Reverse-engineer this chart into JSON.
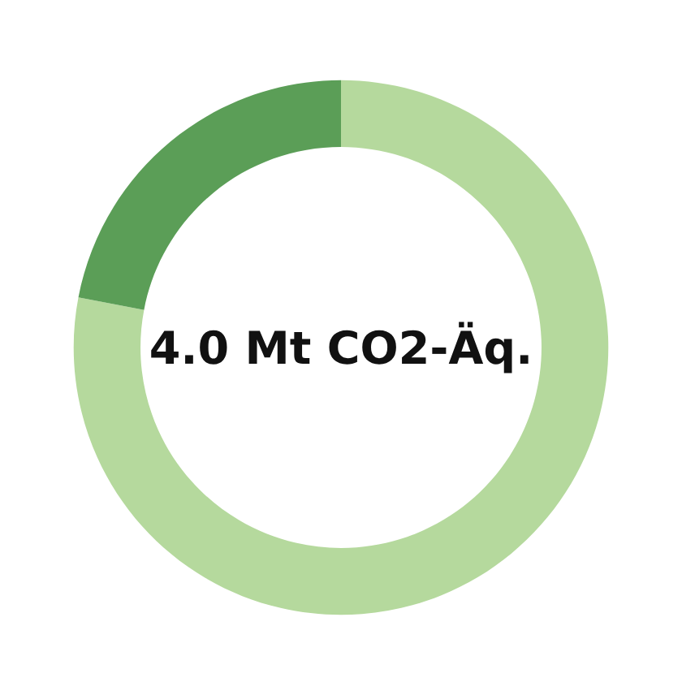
{
  "chart_data": {
    "type": "donut",
    "categories": [
      null,
      null
    ],
    "values": [
      78,
      22
    ],
    "colors": [
      "#b5d99d",
      "#5b9e57"
    ],
    "annotations": [
      "4.0 Mt CO2-Äq."
    ]
  }
}
